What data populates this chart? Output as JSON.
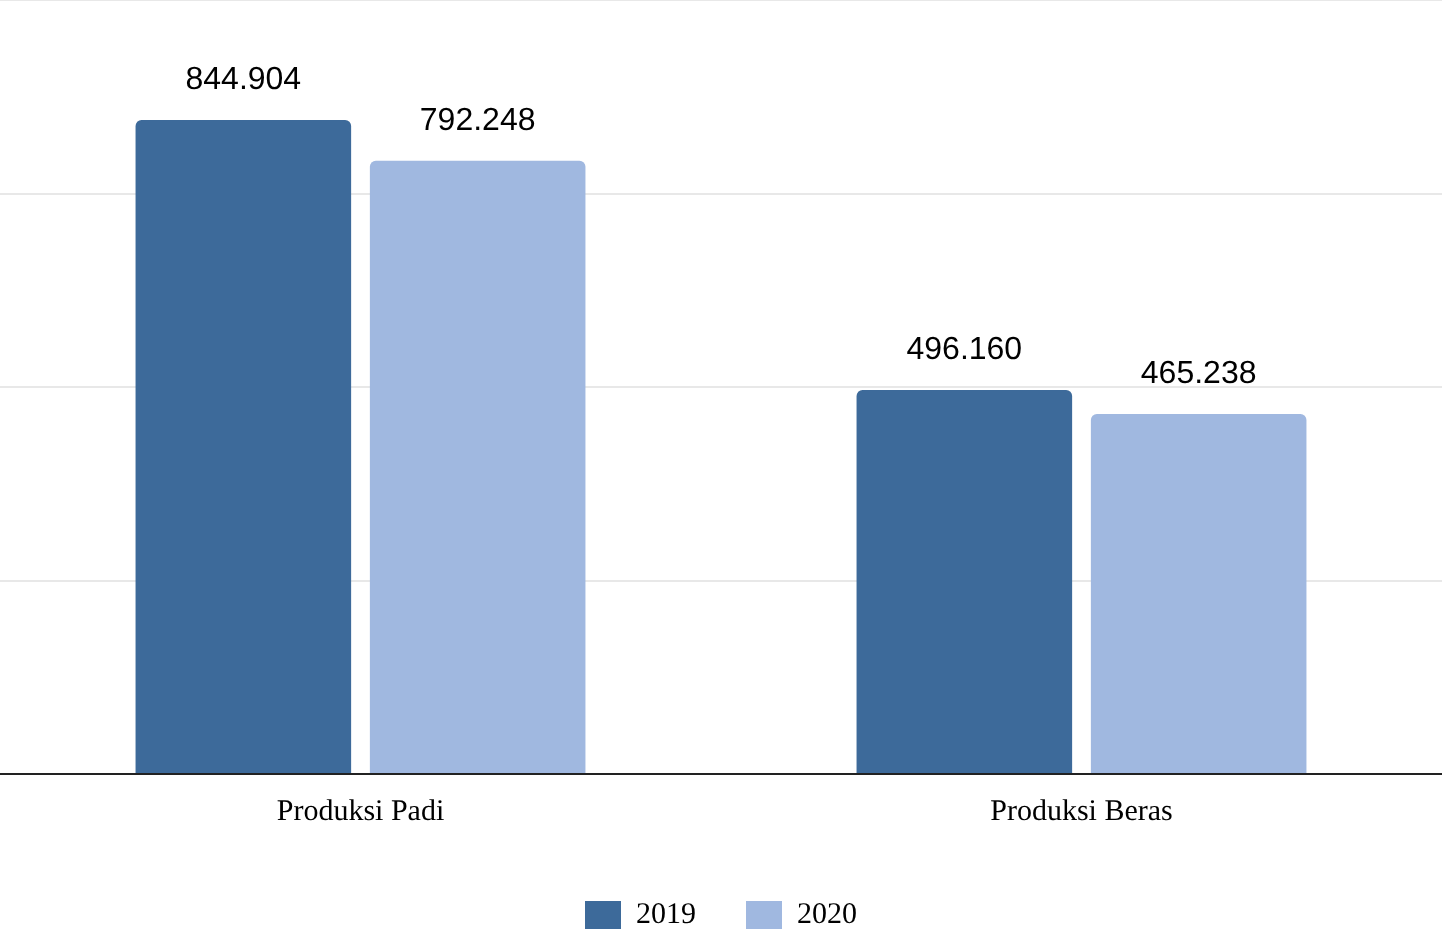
{
  "chart_data": {
    "type": "bar",
    "categories": [
      "Produksi Padi",
      "Produksi Beras"
    ],
    "series": [
      {
        "name": "2019",
        "color": "#3d6a9a",
        "values": [
          844904,
          496160
        ],
        "value_labels": [
          "844.904",
          "496.160"
        ]
      },
      {
        "name": "2020",
        "color": "#a0b8e0",
        "values": [
          792248,
          465238
        ],
        "value_labels": [
          "792.248",
          "465.238"
        ]
      }
    ],
    "ylim": [
      0,
      1000000
    ],
    "yticks": [
      {
        "value": 0,
        "label": null
      },
      {
        "value": 250000,
        "label": null
      },
      {
        "value": 500000,
        "label": null
      },
      {
        "value": 750000,
        "label": null
      },
      {
        "value": 1000000,
        "label": null
      }
    ],
    "grid": "y",
    "legend": "bottom",
    "tick_labels": "x"
  }
}
